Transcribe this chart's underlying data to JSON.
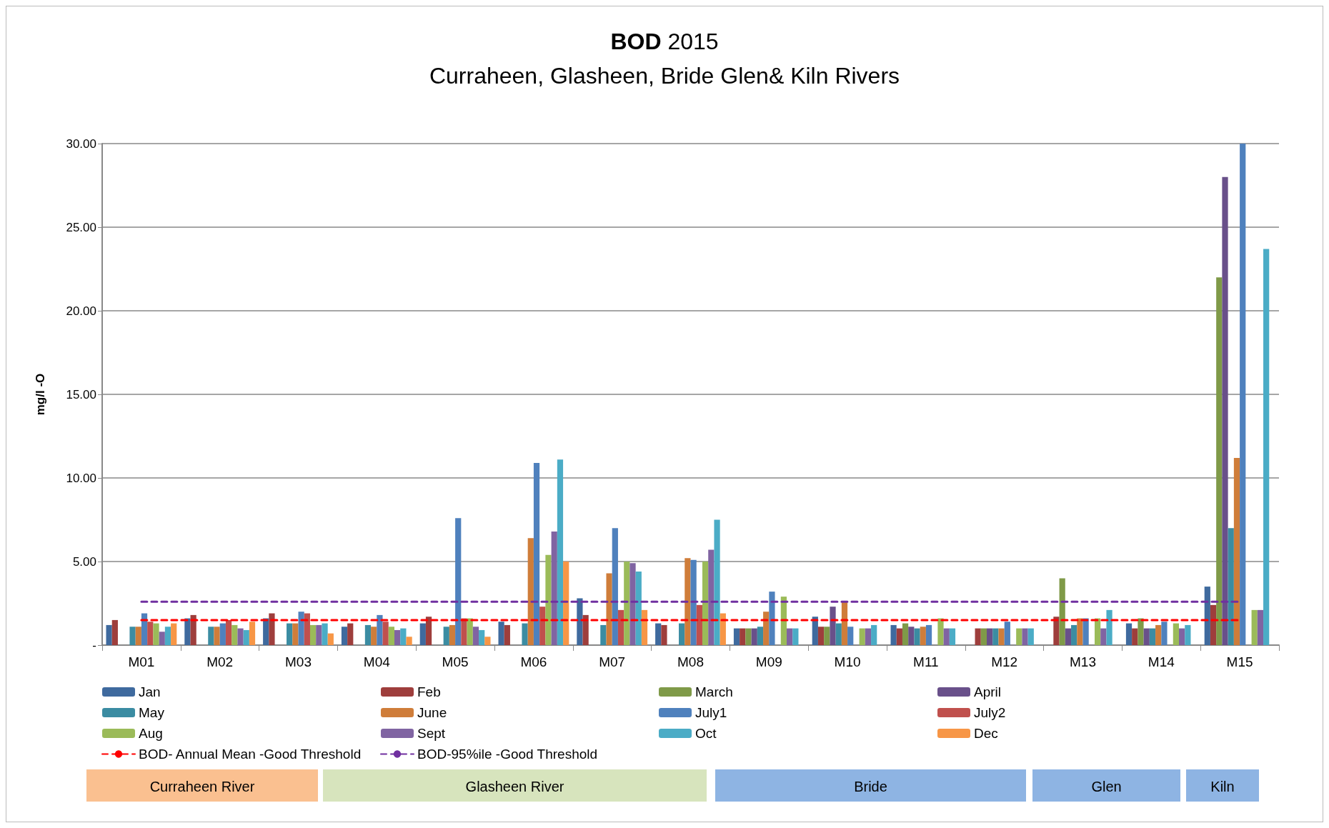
{
  "chart_data": {
    "type": "bar",
    "title": "BOD 2015",
    "subtitle": "Curraheen, Glasheen, Bride Glen& Kiln Rivers",
    "ylabel": "mg/l -O",
    "categories": [
      "M01",
      "M02",
      "M03",
      "M04",
      "M05",
      "M06",
      "M07",
      "M08",
      "M09",
      "M10",
      "M11",
      "M12",
      "M13",
      "M14",
      "M15"
    ],
    "series": [
      {
        "name": "Jan",
        "color": "#3f6a9e",
        "values": [
          1.2,
          1.6,
          1.6,
          1.1,
          1.3,
          1.4,
          2.8,
          1.3,
          1.0,
          1.7,
          1.2,
          null,
          null,
          1.3,
          3.5
        ]
      },
      {
        "name": "Feb",
        "color": "#9e3e3c",
        "values": [
          1.5,
          1.8,
          1.9,
          1.3,
          1.7,
          1.2,
          1.8,
          1.2,
          1.0,
          1.1,
          1.0,
          1.0,
          1.7,
          1.0,
          2.4
        ]
      },
      {
        "name": "March",
        "color": "#7f9a48",
        "values": [
          null,
          null,
          null,
          null,
          null,
          null,
          null,
          null,
          1.0,
          1.1,
          1.3,
          1.0,
          4.0,
          1.6,
          22.0
        ]
      },
      {
        "name": "April",
        "color": "#69508a",
        "values": [
          null,
          null,
          null,
          null,
          null,
          null,
          null,
          null,
          1.0,
          2.3,
          1.1,
          1.0,
          1.0,
          1.0,
          28.0
        ]
      },
      {
        "name": "May",
        "color": "#3b8ca2",
        "values": [
          1.1,
          1.1,
          1.3,
          1.2,
          1.1,
          1.3,
          1.2,
          1.3,
          1.1,
          1.3,
          1.0,
          1.0,
          1.2,
          1.0,
          7.0
        ]
      },
      {
        "name": "June",
        "color": "#cf7d3a",
        "values": [
          1.1,
          1.1,
          1.3,
          1.1,
          1.2,
          6.4,
          4.3,
          5.2,
          2.0,
          2.6,
          1.1,
          1.0,
          1.6,
          1.2,
          11.2
        ]
      },
      {
        "name": "July1",
        "color": "#4f81bd",
        "values": [
          1.9,
          1.3,
          2.0,
          1.8,
          7.6,
          10.9,
          7.0,
          5.1,
          3.2,
          1.1,
          1.2,
          1.4,
          1.6,
          1.4,
          30.0
        ]
      },
      {
        "name": "July2",
        "color": "#c0504d",
        "values": [
          1.4,
          1.5,
          1.9,
          1.4,
          1.6,
          2.3,
          2.1,
          2.4,
          null,
          null,
          null,
          null,
          null,
          null,
          null
        ]
      },
      {
        "name": "Aug",
        "color": "#9bbb59",
        "values": [
          1.3,
          1.2,
          1.2,
          1.1,
          1.6,
          5.4,
          5.0,
          5.0,
          2.9,
          1.0,
          1.6,
          1.0,
          1.6,
          1.3,
          2.1
        ]
      },
      {
        "name": "Sept",
        "color": "#8064a2",
        "values": [
          0.8,
          1.0,
          1.2,
          0.9,
          1.1,
          6.8,
          4.9,
          5.7,
          1.0,
          1.0,
          1.0,
          1.0,
          1.0,
          1.0,
          2.1
        ]
      },
      {
        "name": "Oct",
        "color": "#4bacc6",
        "values": [
          1.1,
          0.9,
          1.3,
          1.0,
          0.9,
          11.1,
          4.4,
          7.5,
          1.0,
          1.2,
          1.0,
          1.0,
          2.1,
          1.2,
          23.7
        ]
      },
      {
        "name": "Dec",
        "color": "#f79646",
        "values": [
          1.3,
          1.4,
          0.7,
          0.5,
          0.5,
          5.0,
          2.1,
          1.9,
          null,
          null,
          null,
          null,
          null,
          null,
          null
        ]
      },
      {
        "name": "BOD- Annual Mean -Good Threshold",
        "type": "line",
        "color": "#ff0000",
        "line_style": "dashed",
        "values": [
          1.5,
          1.5,
          1.5,
          1.5,
          1.5,
          1.5,
          1.5,
          1.5,
          1.5,
          1.5,
          1.5,
          1.5,
          1.5,
          1.5,
          1.5
        ]
      },
      {
        "name": "BOD-95%ile -Good Threshold",
        "type": "line",
        "color": "#7030a0",
        "line_style": "dashed",
        "values": [
          2.6,
          2.6,
          2.6,
          2.6,
          2.6,
          2.6,
          2.6,
          2.6,
          2.6,
          2.6,
          2.6,
          2.6,
          2.6,
          2.6,
          2.6
        ]
      }
    ],
    "ylim": [
      0,
      30
    ],
    "yticks": [
      {
        "value": 0,
        "label": "-"
      },
      {
        "value": 5,
        "label": "5.00"
      },
      {
        "value": 10,
        "label": "10.00"
      },
      {
        "value": 15,
        "label": "15.00"
      },
      {
        "value": 20,
        "label": "20.00"
      },
      {
        "value": 25,
        "label": "25.00"
      },
      {
        "value": 30,
        "label": "30.00"
      }
    ],
    "grid": "y",
    "legend": "bottom",
    "marker": "none",
    "annotations": [
      "Curraheen River",
      "Glasheen River",
      "Bride",
      "Glen",
      "Kiln"
    ]
  }
}
